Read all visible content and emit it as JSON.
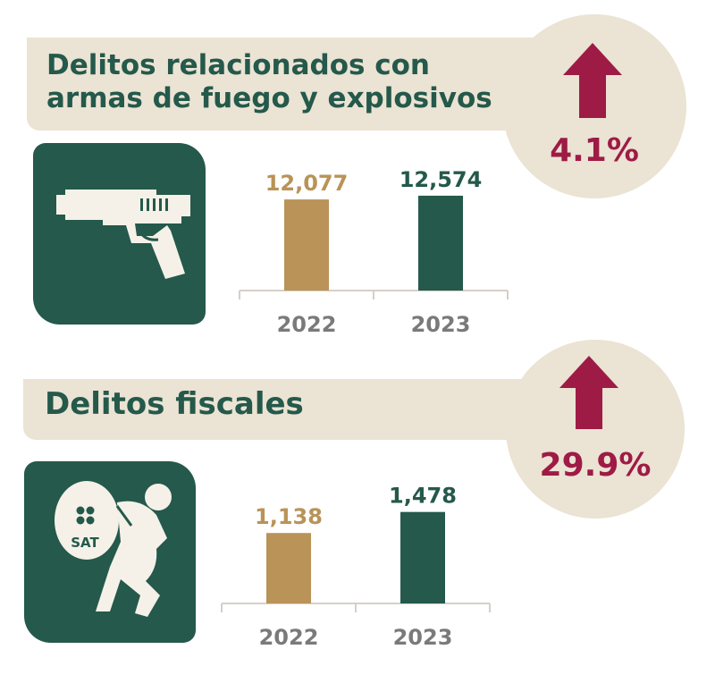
{
  "colors": {
    "green": "#24594b",
    "gold": "#b99357",
    "beige": "#ebe3d3",
    "maroon": "#9e1b46",
    "axis": "#d5d0c6",
    "tick_text": "#7a7a7a"
  },
  "panels": [
    {
      "title_lines": [
        "Delitos relacionados con",
        "armas de fuego y explosivos"
      ],
      "change": "4.1%",
      "change_direction": "up",
      "icon": "handgun-icon"
    },
    {
      "title_lines": [
        "Delitos fiscales"
      ],
      "change": "29.9%",
      "change_direction": "up",
      "icon": "sat-thief-icon",
      "icon_text": "SAT"
    }
  ],
  "chart_data": [
    {
      "type": "bar",
      "categories": [
        "2022",
        "2023"
      ],
      "values": [
        12077,
        12574
      ],
      "value_labels": [
        "12,077",
        "12,574"
      ],
      "bar_colors": [
        "#b99357",
        "#24594b"
      ],
      "ylim": [
        0,
        16000
      ],
      "grid": false
    },
    {
      "type": "bar",
      "categories": [
        "2022",
        "2023"
      ],
      "values": [
        1138,
        1478
      ],
      "value_labels": [
        "1,138",
        "1,478"
      ],
      "bar_colors": [
        "#b99357",
        "#24594b"
      ],
      "ylim": [
        0,
        1950
      ],
      "grid": false
    }
  ]
}
